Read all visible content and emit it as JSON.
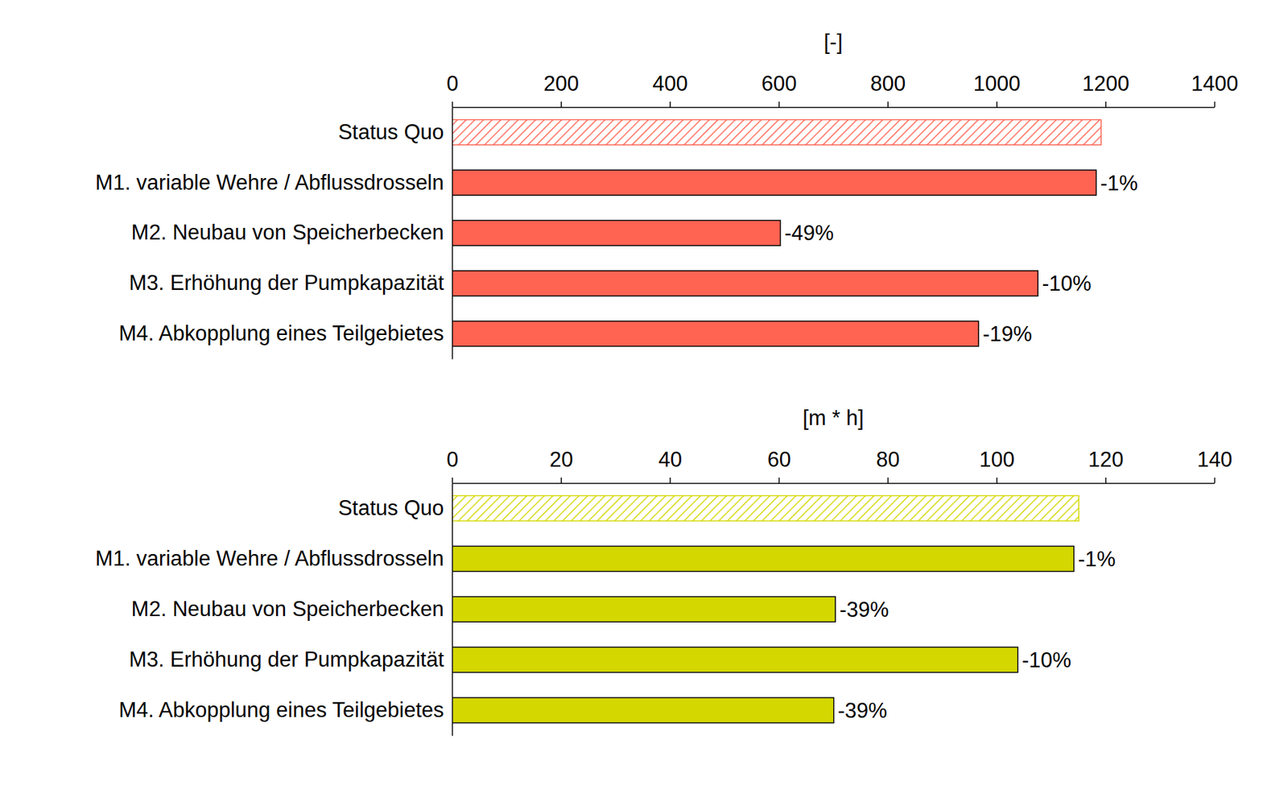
{
  "chart_data": [
    {
      "type": "bar",
      "orientation": "horizontal",
      "x_label": "[-]",
      "categories": [
        "Status Quo",
        "M1. variable Wehre / Abflussdrosseln",
        "M2. Neubau von Speicherbecken",
        "M3. Erhöhung der Pumpkapazität",
        "M4. Abkopplung eines Teilgebietes"
      ],
      "values": [
        1192,
        1183,
        603,
        1076,
        967
      ],
      "annotations": [
        null,
        "-1%",
        "-49%",
        "-10%",
        "-19%"
      ],
      "color": "#ff6352",
      "xlim": [
        0,
        1400
      ],
      "xticks": [
        0,
        200,
        400,
        600,
        800,
        1000,
        1200,
        1400
      ],
      "grid": false
    },
    {
      "type": "bar",
      "orientation": "horizontal",
      "x_label": "[m * h]",
      "categories": [
        "Status Quo",
        "M1. variable Wehre / Abflussdrosseln",
        "M2. Neubau von Speicherbecken",
        "M3. Erhöhung der Pumpkapazität",
        "M4. Abkopplung eines Teilgebietes"
      ],
      "values": [
        115.1,
        114.2,
        70.4,
        103.9,
        70.1
      ],
      "annotations": [
        null,
        "-1%",
        "-39%",
        "-10%",
        "-39%"
      ],
      "color": "#d4d700",
      "xlim": [
        0,
        140
      ],
      "xticks": [
        0,
        20,
        40,
        60,
        80,
        100,
        120,
        140
      ],
      "grid": false
    }
  ]
}
